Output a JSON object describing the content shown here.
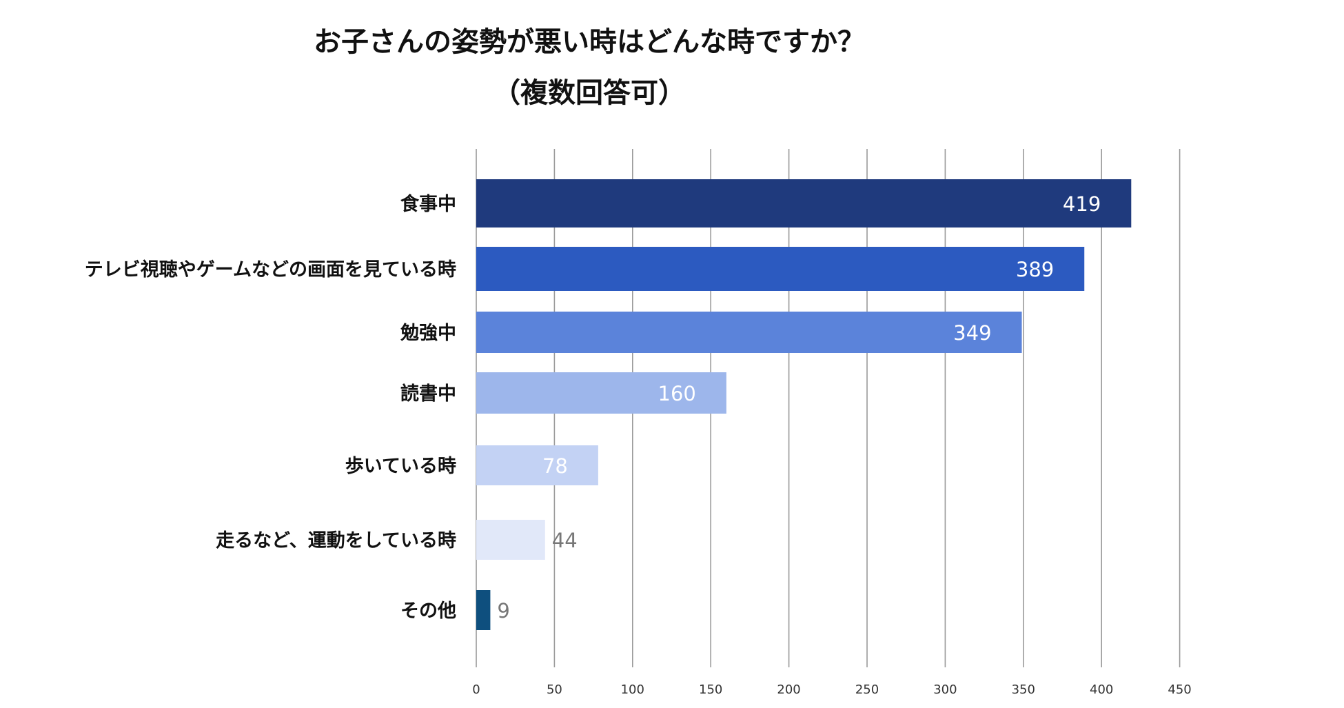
{
  "chart_data": {
    "type": "bar",
    "orientation": "horizontal",
    "title_line1": "お子さんの姿勢が悪い時はどんな時ですか？",
    "title_line2": "（複数回答可）",
    "categories": [
      "食事中",
      "テレビ視聴やゲームなどの画面を見ている時",
      "勉強中",
      "読書中",
      "歩いている時",
      "走るなど、運動をしている時",
      "その他"
    ],
    "values": [
      419,
      389,
      349,
      160,
      78,
      44,
      9
    ],
    "value_labels": [
      "419",
      "389",
      "349",
      "160",
      "78",
      "44",
      "9"
    ],
    "bar_colors": [
      "#1f3a7d",
      "#2c5ac0",
      "#5b83da",
      "#9db6eb",
      "#c3d2f4",
      "#e1e8f9",
      "#0e4f7e"
    ],
    "label_colors": [
      "#ffffff",
      "#ffffff",
      "#ffffff",
      "#ffffff",
      "#ffffff",
      "#777777",
      "#777777"
    ],
    "xlim": [
      0,
      450
    ],
    "ticks": [
      0,
      50,
      100,
      150,
      200,
      250,
      300,
      350,
      400,
      450
    ],
    "tick_labels": [
      "0",
      "50",
      "100",
      "150",
      "200",
      "250",
      "300",
      "350",
      "400",
      "450"
    ],
    "grid": true,
    "xlabel": "",
    "ylabel": ""
  }
}
